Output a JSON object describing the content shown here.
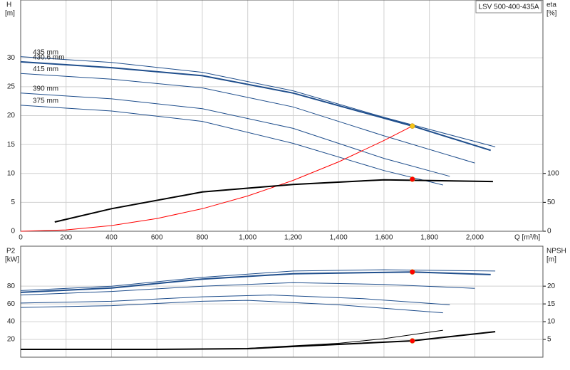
{
  "chart_data": [
    {
      "type": "line",
      "title": "LSV 500-400-435A",
      "ylabel": "H",
      "yunit": "[m]",
      "y2label": "eta",
      "y2unit": "[%]",
      "xlabel": "Q [m³/h]",
      "xlim": [
        0,
        2300
      ],
      "xticks": [
        0,
        200,
        400,
        600,
        800,
        {
          "value": 1000,
          "label": "1,000"
        },
        {
          "value": 1200,
          "label": "1,200"
        },
        {
          "value": 1400,
          "label": "1,400"
        },
        {
          "value": 1600,
          "label": "1,600"
        },
        {
          "value": 1800,
          "label": "1,800"
        },
        {
          "value": 2000,
          "label": "2,000"
        }
      ],
      "ylim": [
        0,
        40
      ],
      "yticks": [
        0,
        5,
        10,
        15,
        20,
        25,
        30
      ],
      "y2lim": [
        0,
        400
      ],
      "y2ticks": [
        0,
        50,
        100
      ],
      "grid": true,
      "series": [
        {
          "name": "435 mm",
          "color": "#1f4e8c",
          "width": 1,
          "x": [
            0,
            400,
            800,
            1200,
            1600,
            2090
          ],
          "values": [
            30.2,
            29.2,
            27.5,
            24.3,
            19.7,
            14.6
          ]
        },
        {
          "name": "430.6 mm",
          "color": "#1f4e8c",
          "width": 2,
          "x": [
            0,
            400,
            800,
            1200,
            1725,
            2070
          ],
          "values": [
            29.3,
            28.3,
            26.9,
            23.9,
            18.2,
            14.0
          ]
        },
        {
          "name": "415 mm",
          "color": "#1f4e8c",
          "width": 1,
          "x": [
            0,
            400,
            800,
            1200,
            1600,
            2000
          ],
          "values": [
            27.3,
            26.3,
            24.8,
            21.5,
            16.5,
            11.8
          ]
        },
        {
          "name": "390 mm",
          "color": "#1f4e8c",
          "width": 1,
          "x": [
            0,
            400,
            800,
            1200,
            1600,
            1890
          ],
          "values": [
            23.9,
            22.9,
            21.2,
            17.8,
            12.6,
            9.5
          ]
        },
        {
          "name": "375 mm",
          "color": "#1f4e8c",
          "width": 1,
          "x": [
            0,
            400,
            800,
            1200,
            1600,
            1860
          ],
          "values": [
            21.8,
            20.8,
            19.0,
            15.2,
            10.5,
            8.0
          ]
        },
        {
          "color": "#ff0000",
          "width": 1,
          "x": [
            0,
            200,
            400,
            600,
            800,
            1000,
            1200,
            1400,
            1600,
            1725
          ],
          "values": [
            0,
            0.24,
            0.98,
            2.2,
            3.9,
            6.1,
            8.8,
            12.0,
            15.7,
            18.2
          ]
        },
        {
          "color": "#000000",
          "width": 2,
          "axis": "y2",
          "x": [
            150,
            400,
            800,
            1200,
            1600,
            2080
          ],
          "values": [
            16,
            39,
            68,
            81,
            89,
            86
          ]
        }
      ],
      "markers": [
        {
          "color": "#f5c518",
          "x": 1725,
          "value": 18.2
        },
        {
          "color": "#ff0000",
          "axis": "y2",
          "x": 1725,
          "value": 90
        }
      ]
    },
    {
      "type": "line",
      "ylabel": "P2",
      "yunit": "[kW]",
      "y2label": "NPSH",
      "y2unit": "[m]",
      "ylim": [
        0,
        125
      ],
      "yticks": [
        20,
        40,
        60,
        80
      ],
      "y2lim": [
        0,
        31.25
      ],
      "y2ticks": [
        5,
        10,
        15,
        20
      ],
      "grid": true,
      "series": [
        {
          "color": "#1f4e8c",
          "width": 1,
          "x": [
            0,
            400,
            800,
            1200,
            1600,
            2090
          ],
          "values": [
            75,
            80,
            90,
            97,
            98.5,
            97
          ]
        },
        {
          "color": "#1f4e8c",
          "width": 2,
          "x": [
            0,
            400,
            800,
            1200,
            1725,
            2070
          ],
          "values": [
            73,
            78,
            88,
            94,
            96,
            93
          ]
        },
        {
          "color": "#1f4e8c",
          "width": 1,
          "x": [
            0,
            400,
            800,
            1200,
            1600,
            2000
          ],
          "values": [
            70,
            74,
            80,
            84,
            82,
            77.6
          ]
        },
        {
          "color": "#1f4e8c",
          "width": 1,
          "x": [
            0,
            400,
            800,
            1100,
            1500,
            1890
          ],
          "values": [
            61,
            63,
            68,
            70,
            66,
            59
          ]
        },
        {
          "color": "#1f4e8c",
          "width": 1,
          "x": [
            0,
            400,
            800,
            1000,
            1400,
            1860
          ],
          "values": [
            56,
            58,
            63,
            64,
            59,
            50
          ]
        },
        {
          "color": "#000000",
          "width": 2,
          "axis": "y2",
          "x": [
            0,
            600,
            1000,
            1400,
            1725,
            2090
          ],
          "values": [
            2.2,
            2.2,
            2.4,
            3.6,
            4.6,
            7.2
          ]
        },
        {
          "color": "#000000",
          "width": 1,
          "axis": "y2",
          "x": [
            1000,
            1400,
            1600,
            1860
          ],
          "values": [
            2.5,
            3.9,
            5.2,
            7.6
          ]
        }
      ],
      "markers": [
        {
          "color": "#ff0000",
          "x": 1725,
          "value": 96
        },
        {
          "color": "#ff0000",
          "axis": "y2",
          "x": 1725,
          "value": 4.6
        }
      ]
    }
  ]
}
